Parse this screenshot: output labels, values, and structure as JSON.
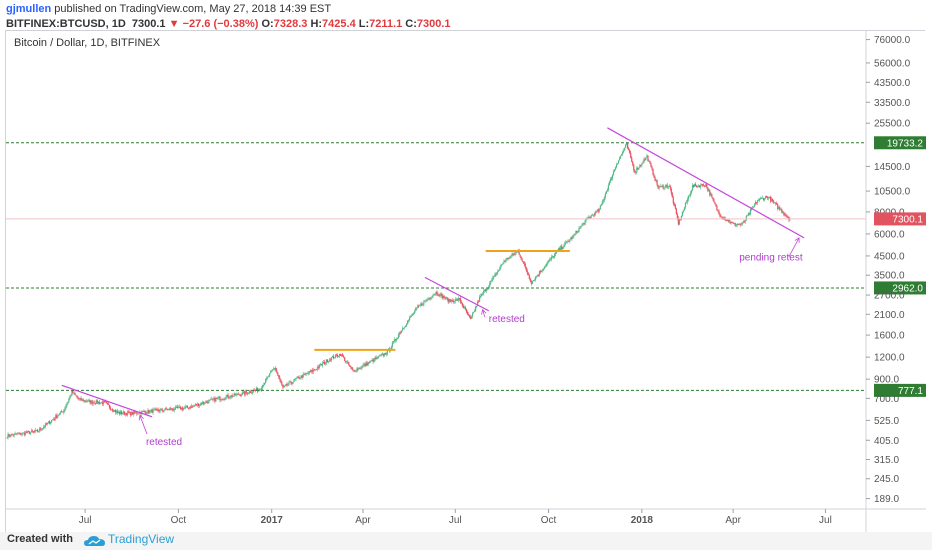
{
  "header": {
    "author": "gjmullen",
    "published": "published on TradingView.com, May 27, 2018 14:39 EST",
    "symbol": "BITFINEX:BTCUSD, 1D",
    "last": "7300.1",
    "change": "−27.6 (−0.38%)",
    "ohlc": {
      "open_label": "O:",
      "open": "7328.3",
      "high_label": "H:",
      "high": "7425.4",
      "low_label": "L:",
      "low": "7211.1",
      "close_label": "C:",
      "close": "7300.1"
    }
  },
  "footer": {
    "created": "Created with",
    "brand": "TradingView"
  },
  "colors": {
    "up": "#53b987",
    "down": "#eb4d5c",
    "trend": "#c643dd",
    "box": "#f0a21c",
    "support": "#2e7d32",
    "label_green": "#2e7d32",
    "label_red": "#e0535f",
    "annotation": "#b03cd0"
  },
  "chart_data": {
    "type": "candlestick",
    "title": "Bitcoin / Dollar, 1D, BITFINEX",
    "y_scale": "log",
    "y_ticks": [
      "76000.0",
      "56000.0",
      "43500.0",
      "33500.0",
      "25500.0",
      "19733.2",
      "14500.0",
      "10500.0",
      "8000.0",
      "7300.1",
      "6000.0",
      "4500.0",
      "3500.0",
      "2962.0",
      "2700.0",
      "2100.0",
      "1600.0",
      "1200.0",
      "900.0",
      "777.1",
      "700.0",
      "525.0",
      "405.0",
      "315.0",
      "245.0",
      "189.0"
    ],
    "y_tick_values": [
      76000,
      56000,
      43500,
      33500,
      25500,
      19733.2,
      14500,
      10500,
      8000,
      7300.1,
      6000,
      4500,
      3500,
      2962,
      2700,
      2100,
      1600,
      1200,
      900,
      777.1,
      700,
      525,
      405,
      315,
      245,
      189
    ],
    "x_ticks": [
      {
        "label": "Jul",
        "date": "2016-07-01",
        "bold": false
      },
      {
        "label": "Oct",
        "date": "2016-10-01",
        "bold": false
      },
      {
        "label": "2017",
        "date": "2017-01-01",
        "bold": true
      },
      {
        "label": "Apr",
        "date": "2017-04-01",
        "bold": false
      },
      {
        "label": "Jul",
        "date": "2017-07-01",
        "bold": false
      },
      {
        "label": "Oct",
        "date": "2017-10-01",
        "bold": false
      },
      {
        "label": "2018",
        "date": "2018-01-01",
        "bold": true
      },
      {
        "label": "Apr",
        "date": "2018-04-01",
        "bold": false
      },
      {
        "label": "Jul",
        "date": "2018-07-01",
        "bold": false
      }
    ],
    "x_range": [
      "2016-04-14",
      "2018-08-10"
    ],
    "y_range": [
      165,
      85000
    ],
    "price_path": [
      [
        "2016-04-15",
        430
      ],
      [
        "2016-05-15",
        455
      ],
      [
        "2016-05-28",
        520
      ],
      [
        "2016-06-10",
        600
      ],
      [
        "2016-06-18",
        760
      ],
      [
        "2016-06-25",
        690
      ],
      [
        "2016-07-05",
        670
      ],
      [
        "2016-07-20",
        660
      ],
      [
        "2016-08-02",
        580
      ],
      [
        "2016-08-15",
        575
      ],
      [
        "2016-09-01",
        590
      ],
      [
        "2016-09-20",
        605
      ],
      [
        "2016-10-10",
        620
      ],
      [
        "2016-10-25",
        660
      ],
      [
        "2016-11-10",
        700
      ],
      [
        "2016-12-01",
        740
      ],
      [
        "2016-12-20",
        790
      ],
      [
        "2017-01-04",
        1050
      ],
      [
        "2017-01-12",
        800
      ],
      [
        "2017-01-25",
        900
      ],
      [
        "2017-02-10",
        1000
      ],
      [
        "2017-02-28",
        1180
      ],
      [
        "2017-03-10",
        1250
      ],
      [
        "2017-03-22",
        1000
      ],
      [
        "2017-04-05",
        1100
      ],
      [
        "2017-04-25",
        1280
      ],
      [
        "2017-05-10",
        1750
      ],
      [
        "2017-05-25",
        2300
      ],
      [
        "2017-06-05",
        2600
      ],
      [
        "2017-06-12",
        2800
      ],
      [
        "2017-06-25",
        2500
      ],
      [
        "2017-07-05",
        2550
      ],
      [
        "2017-07-16",
        1950
      ],
      [
        "2017-07-25",
        2600
      ],
      [
        "2017-08-05",
        3200
      ],
      [
        "2017-08-18",
        4200
      ],
      [
        "2017-09-01",
        4800
      ],
      [
        "2017-09-14",
        3200
      ],
      [
        "2017-09-25",
        3800
      ],
      [
        "2017-10-10",
        4800
      ],
      [
        "2017-10-25",
        5800
      ],
      [
        "2017-11-08",
        7300
      ],
      [
        "2017-11-20",
        8200
      ],
      [
        "2017-12-07",
        15000
      ],
      [
        "2017-12-17",
        19300
      ],
      [
        "2017-12-25",
        13500
      ],
      [
        "2018-01-06",
        16500
      ],
      [
        "2018-01-17",
        11000
      ],
      [
        "2018-01-28",
        11300
      ],
      [
        "2018-02-06",
        6900
      ],
      [
        "2018-02-20",
        11200
      ],
      [
        "2018-03-05",
        11400
      ],
      [
        "2018-03-18",
        7800
      ],
      [
        "2018-04-01",
        6800
      ],
      [
        "2018-04-10",
        6800
      ],
      [
        "2018-04-25",
        9300
      ],
      [
        "2018-05-05",
        9800
      ],
      [
        "2018-05-15",
        8500
      ],
      [
        "2018-05-27",
        7300
      ]
    ],
    "trendlines": [
      {
        "from": [
          "2016-06-08",
          830
        ],
        "to": [
          "2016-09-05",
          550
        ]
      },
      {
        "from": [
          "2017-06-01",
          3400
        ],
        "to": [
          "2017-08-03",
          2200
        ]
      },
      {
        "from": [
          "2017-11-28",
          24000
        ],
        "to": [
          "2018-06-10",
          5700
        ]
      }
    ],
    "boxes": [
      {
        "from": "2017-02-12",
        "to": "2017-05-03",
        "price": 1320
      },
      {
        "from": "2017-07-31",
        "to": "2017-10-22",
        "price": 4800
      }
    ],
    "support_lines": [
      19733.2,
      2962.0,
      777.1
    ],
    "current_price_line": 7300.1,
    "annotations": [
      {
        "text": "retested",
        "date": "2016-08-30",
        "price": 380
      },
      {
        "text": "retested",
        "date": "2017-08-03",
        "price": 1900
      },
      {
        "text": "pending retest",
        "date": "2018-04-07",
        "price": 4250
      }
    ],
    "arrows": [
      {
        "from": [
          "2016-08-31",
          440
        ],
        "to": [
          "2016-08-24",
          560
        ]
      },
      {
        "from": [
          "2017-07-30",
          2030
        ],
        "to": [
          "2017-07-28",
          2230
        ]
      },
      {
        "from": [
          "2018-05-26",
          4450
        ],
        "to": [
          "2018-06-05",
          5700
        ]
      }
    ]
  }
}
